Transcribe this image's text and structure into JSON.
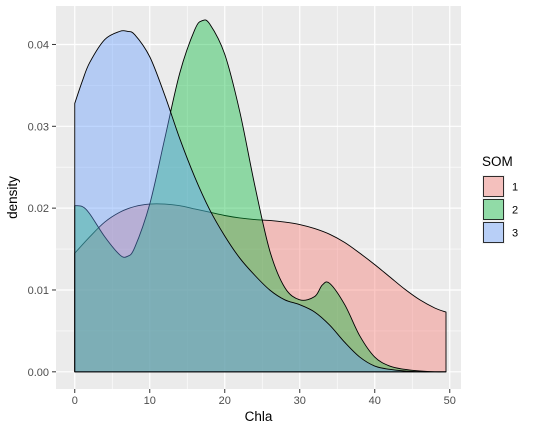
{
  "chart_data": {
    "type": "area",
    "xlabel": "Chla",
    "ylabel": "density",
    "xlim": [
      -2.5,
      51.5
    ],
    "ylim": [
      -0.0021,
      0.0447
    ],
    "x_ticks": [
      0,
      10,
      20,
      30,
      40,
      50
    ],
    "x_tick_labels": [
      "0",
      "10",
      "20",
      "30",
      "40",
      "50"
    ],
    "y_ticks": [
      0,
      0.01,
      0.02,
      0.03,
      0.04
    ],
    "y_tick_labels": [
      "0.00",
      "0.01",
      "0.02",
      "0.03",
      "0.04"
    ],
    "grid": true,
    "legend": {
      "title": "SOM",
      "position": "right"
    },
    "series": [
      {
        "name": "1",
        "color": "#F8766D",
        "x": [
          0,
          2,
          4,
          6,
          8,
          10,
          12,
          14,
          16,
          18,
          20,
          22,
          24,
          26,
          28,
          30,
          32,
          34,
          36,
          38,
          40,
          42,
          44,
          46,
          48,
          49.5
        ],
        "y": [
          0.0145,
          0.0165,
          0.0183,
          0.0195,
          0.0202,
          0.0205,
          0.0205,
          0.0203,
          0.0199,
          0.0195,
          0.0191,
          0.0188,
          0.0186,
          0.0185,
          0.0183,
          0.018,
          0.0175,
          0.0168,
          0.0158,
          0.0145,
          0.0131,
          0.0116,
          0.0101,
          0.0088,
          0.0078,
          0.0073
        ]
      },
      {
        "name": "2",
        "color": "#00BA38",
        "x": [
          0,
          1,
          2,
          4,
          6,
          7,
          8,
          10,
          12,
          14,
          16,
          17,
          18,
          20,
          22,
          24,
          26,
          28,
          30,
          32,
          33,
          34,
          36,
          38,
          40,
          42,
          44,
          46,
          48,
          49.5
        ],
        "y": [
          0.0203,
          0.0202,
          0.0193,
          0.0165,
          0.0143,
          0.0141,
          0.0152,
          0.0205,
          0.0285,
          0.0365,
          0.0418,
          0.0429,
          0.0425,
          0.0388,
          0.0318,
          0.0228,
          0.0148,
          0.0103,
          0.0088,
          0.0092,
          0.0106,
          0.0108,
          0.0082,
          0.0044,
          0.0018,
          0.0007,
          0.0003,
          0.0001,
          0.0,
          0.0
        ]
      },
      {
        "name": "3",
        "color": "#619CFF",
        "x": [
          0,
          1,
          2,
          4,
          6,
          7,
          8,
          10,
          12,
          14,
          16,
          18,
          20,
          22,
          24,
          26,
          28,
          30,
          32,
          34,
          36,
          38,
          40,
          42,
          44,
          46,
          48,
          49.5
        ],
        "y": [
          0.0328,
          0.0355,
          0.0378,
          0.0406,
          0.0416,
          0.0416,
          0.0412,
          0.0385,
          0.0338,
          0.0285,
          0.0238,
          0.0198,
          0.0166,
          0.0139,
          0.0118,
          0.01,
          0.0088,
          0.0082,
          0.0073,
          0.0057,
          0.0036,
          0.0018,
          0.0007,
          0.0003,
          0.0001,
          0.0,
          0.0,
          0.0
        ]
      }
    ]
  }
}
